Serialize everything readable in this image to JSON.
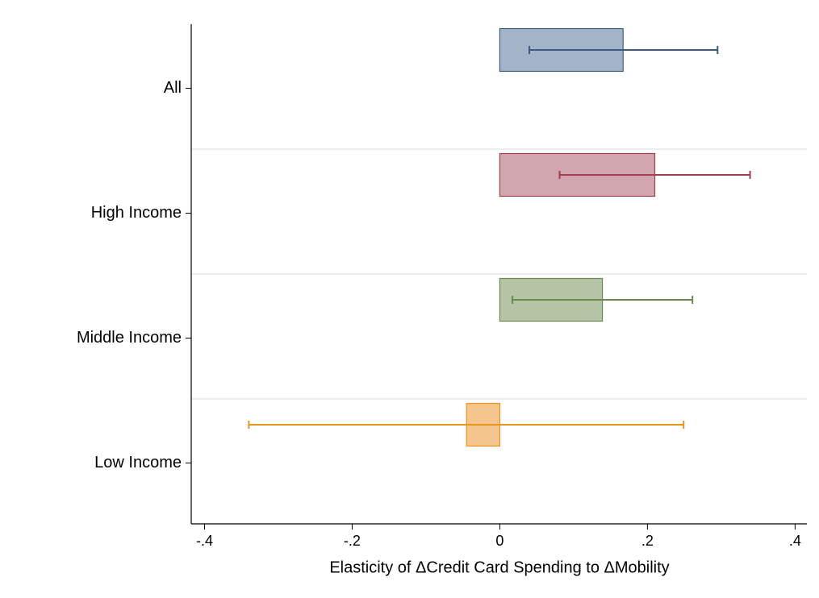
{
  "chart_data": {
    "type": "hbar_errorbar",
    "xlabel": "Elasticity of ΔCredit Card Spending to ΔMobility",
    "categories": [
      "All",
      "High Income",
      "Middle Income",
      "Low Income"
    ],
    "values": [
      0.167,
      0.21,
      0.139,
      -0.045
    ],
    "ci_low": [
      0.04,
      0.081,
      0.017,
      -0.34
    ],
    "ci_high": [
      0.295,
      0.339,
      0.261,
      0.249
    ],
    "colors": [
      "#a3b4c9",
      "#d2a6ae",
      "#b5c4a4",
      "#f5c58e"
    ],
    "edge_colors": [
      "#3a5a80",
      "#a0404f",
      "#6a8a50",
      "#e8951e"
    ],
    "xlim": [
      -0.418,
      0.416
    ],
    "xticks": [
      {
        "value": -0.4,
        "label": "-.4"
      },
      {
        "value": -0.2,
        "label": "-.2"
      },
      0,
      {
        "value": 0.2,
        "label": ".2"
      },
      {
        "value": 0.4,
        "label": ".4"
      }
    ]
  }
}
